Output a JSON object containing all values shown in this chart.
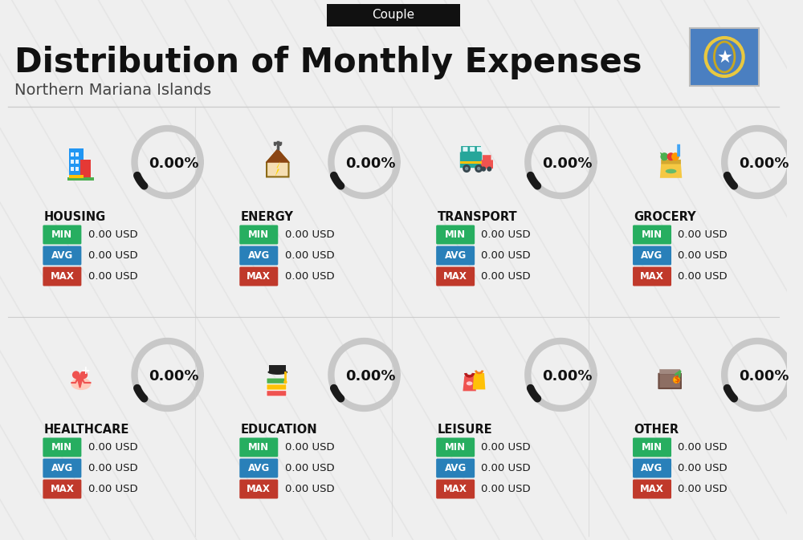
{
  "title": "Distribution of Monthly Expenses",
  "subtitle": "Northern Mariana Islands",
  "badge_text": "Couple",
  "background_color": "#efefef",
  "categories": [
    {
      "name": "HOUSING",
      "row": 0,
      "col": 0
    },
    {
      "name": "ENERGY",
      "row": 0,
      "col": 1
    },
    {
      "name": "TRANSPORT",
      "row": 0,
      "col": 2
    },
    {
      "name": "GROCERY",
      "row": 0,
      "col": 3
    },
    {
      "name": "HEALTHCARE",
      "row": 1,
      "col": 0
    },
    {
      "name": "EDUCATION",
      "row": 1,
      "col": 1
    },
    {
      "name": "LEISURE",
      "row": 1,
      "col": 2
    },
    {
      "name": "OTHER",
      "row": 1,
      "col": 3
    }
  ],
  "percent": "0.00%",
  "min_val": "0.00 USD",
  "avg_val": "0.00 USD",
  "max_val": "0.00 USD",
  "min_color": "#27ae60",
  "avg_color": "#2980b9",
  "max_color": "#c0392b",
  "value_text_color": "#1a1a1a",
  "category_title_color": "#111111",
  "percent_color": "#111111",
  "ring_bg_color": "#c8c8c8",
  "ring_fg_color": "#1a1a1a",
  "flag_bg_color": "#4a7fc1",
  "badge_bg_color": "#111111",
  "badge_text_color": "#ffffff",
  "stripe_color": "#e2e2e2",
  "divider_color": "#cccccc"
}
